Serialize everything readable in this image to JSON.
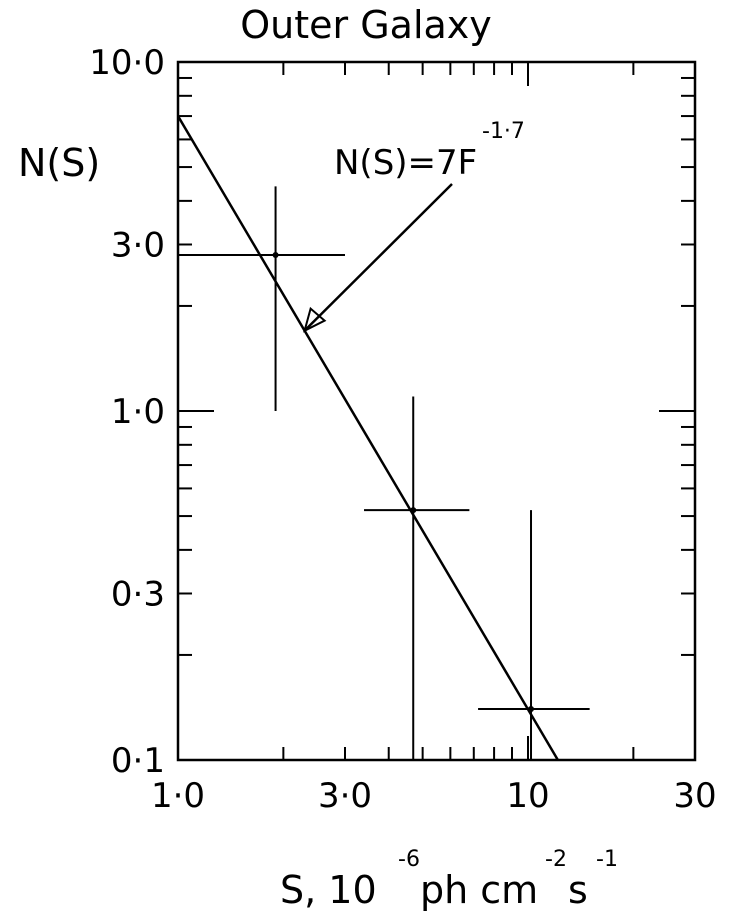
{
  "chart_data": {
    "type": "scatter",
    "title": "Outer Galaxy",
    "ylabel": "N(S)",
    "xlabel": {
      "base": "S, 10",
      "exp1": "-6",
      "unit1": " ph cm",
      "exp2": "-2",
      "unit2": "s",
      "exp3": "-1"
    },
    "x_scale": "log",
    "y_scale": "log",
    "xlim": [
      1.0,
      30
    ],
    "ylim": [
      0.1,
      10.0
    ],
    "x_ticks": [
      {
        "value": 1.0,
        "label": "1·0"
      },
      {
        "value": 3.0,
        "label": "3·0"
      },
      {
        "value": 10,
        "label": "10"
      },
      {
        "value": 30,
        "label": "30"
      }
    ],
    "y_ticks": [
      {
        "value": 10.0,
        "label": "10·0"
      },
      {
        "value": 3.0,
        "label": "3·0"
      },
      {
        "value": 1.0,
        "label": "1·0"
      },
      {
        "value": 0.3,
        "label": "0·3"
      },
      {
        "value": 0.1,
        "label": "0·1"
      }
    ],
    "points": [
      {
        "x": 1.9,
        "y": 2.8,
        "x_low": 1.0,
        "x_high": 3.0,
        "y_low": 1.0,
        "y_high": 4.4
      },
      {
        "x": 4.7,
        "y": 0.52,
        "x_low": 3.4,
        "x_high": 6.8,
        "y_low": 0.1,
        "y_high": 1.1
      },
      {
        "x": 10.2,
        "y": 0.14,
        "x_low": 7.2,
        "x_high": 15.0,
        "y_low": 0.1,
        "y_high": 0.52
      }
    ],
    "fit": {
      "label": "N(S)=7F",
      "exponent": "-1·7",
      "coefficient": 7,
      "power": -1.7
    },
    "grid": false
  }
}
